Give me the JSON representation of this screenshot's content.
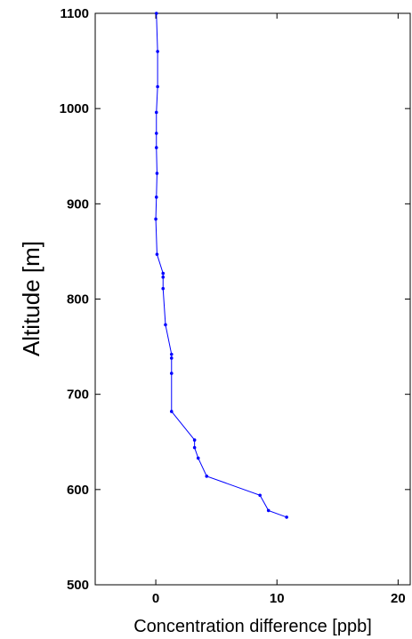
{
  "chart_data": {
    "type": "line",
    "title": "",
    "xlabel": "Concentration difference [ppb]",
    "ylabel": "Altitude [m]",
    "xlim": [
      -5,
      21
    ],
    "ylim": [
      500,
      1100
    ],
    "xticks": [
      0,
      10,
      20
    ],
    "yticks": [
      500,
      600,
      700,
      800,
      900,
      1000,
      1100
    ],
    "grid": false,
    "legend": "none",
    "series": [
      {
        "color": "#0000ff",
        "marker": "dot",
        "points": [
          [
            10.8,
            571
          ],
          [
            9.3,
            578
          ],
          [
            8.6,
            594
          ],
          [
            4.2,
            614
          ],
          [
            3.5,
            633
          ],
          [
            3.2,
            644
          ],
          [
            3.2,
            652
          ],
          [
            1.3,
            682
          ],
          [
            1.3,
            722
          ],
          [
            1.3,
            738
          ],
          [
            1.3,
            742
          ],
          [
            0.8,
            773
          ],
          [
            0.6,
            811
          ],
          [
            0.6,
            823
          ],
          [
            0.6,
            827
          ],
          [
            0.1,
            847
          ],
          [
            0.0,
            884
          ],
          [
            0.05,
            907
          ],
          [
            0.1,
            932
          ],
          [
            0.05,
            959
          ],
          [
            0.05,
            974
          ],
          [
            0.05,
            996
          ],
          [
            0.15,
            1023
          ],
          [
            0.15,
            1060
          ],
          [
            0.05,
            1100
          ]
        ]
      }
    ]
  }
}
